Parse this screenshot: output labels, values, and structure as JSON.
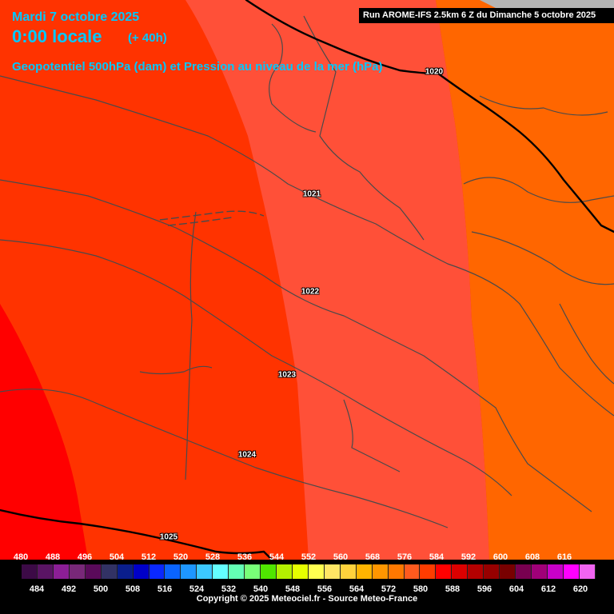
{
  "header": {
    "date": "Mardi 7 octobre 2025",
    "time": "0:00 locale",
    "lead": "(+ 40h)",
    "parameter": "Geopotentiel 500hPa (dam) et Pression au niveau de la mer (hPa)",
    "run_info": "Run AROME-IFS 2.5km 6 Z du Dimanche 5 octobre 2025"
  },
  "isobars": [
    {
      "label": "1020"
    },
    {
      "label": "1021"
    },
    {
      "label": "1022"
    },
    {
      "label": "1023"
    },
    {
      "label": "1024"
    },
    {
      "label": "1025"
    }
  ],
  "zone_colors": {
    "far_west": "#ff0000",
    "west": "#ff3300",
    "center": "#ff5038",
    "east": "#ff6600",
    "nodata": "#b4b4b4"
  },
  "scale": {
    "top_labels": [
      "480",
      "488",
      "496",
      "504",
      "512",
      "520",
      "528",
      "536",
      "544",
      "552",
      "560",
      "568",
      "576",
      "584",
      "592",
      "600",
      "608",
      "616"
    ],
    "bottom_labels": [
      "484",
      "492",
      "500",
      "508",
      "516",
      "524",
      "532",
      "540",
      "548",
      "556",
      "564",
      "572",
      "580",
      "588",
      "596",
      "604",
      "612",
      "620"
    ],
    "colors": [
      "#3c0a46",
      "#5a1464",
      "#8c1e96",
      "#782878",
      "#5a0a5a",
      "#323264",
      "#0a1e8c",
      "#0000c8",
      "#0a28ff",
      "#0a64ff",
      "#1e96ff",
      "#3cc8ff",
      "#64ffff",
      "#64ffb4",
      "#78ff78",
      "#50e600",
      "#b4f000",
      "#e6ff00",
      "#ffff50",
      "#ffe664",
      "#ffd23c",
      "#ffb400",
      "#ff9600",
      "#ff7800",
      "#ff5a1e",
      "#ff3c00",
      "#ff0000",
      "#dc0000",
      "#b40000",
      "#960000",
      "#780000",
      "#780050",
      "#a00078",
      "#c800c8",
      "#ff00ff",
      "#f064f0"
    ]
  },
  "copyright": "Copyright © 2025 Meteociel.fr - Source Meteo-France"
}
